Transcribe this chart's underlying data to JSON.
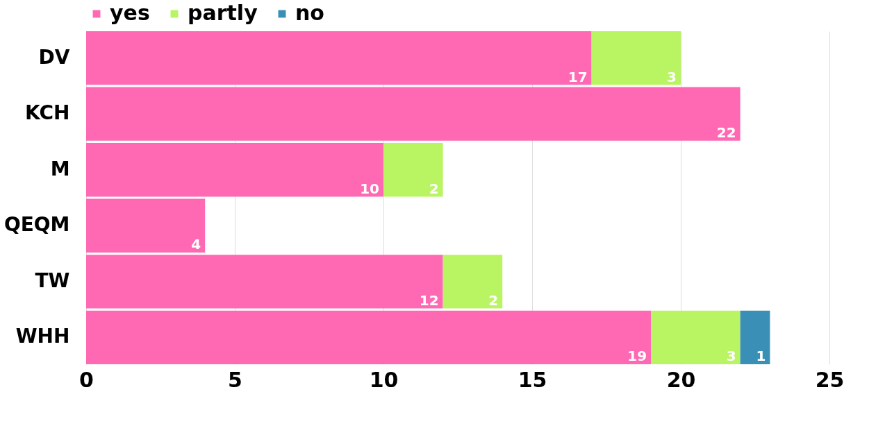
{
  "chart_data": {
    "type": "bar",
    "orientation": "horizontal",
    "stacked": true,
    "categories": [
      "DV",
      "KCH",
      "M",
      "QEQM",
      "TW",
      "WHH"
    ],
    "series": [
      {
        "name": "yes",
        "color": "#ff69b4",
        "values": [
          17,
          22,
          10,
          4,
          12,
          19
        ]
      },
      {
        "name": "partly",
        "color": "#b9f463",
        "values": [
          3,
          null,
          2,
          null,
          2,
          3
        ]
      },
      {
        "name": "no",
        "color": "#3a8fb7",
        "values": [
          null,
          null,
          null,
          null,
          null,
          1
        ]
      }
    ],
    "xlim": [
      0,
      25
    ],
    "xticks": [
      0,
      5,
      10,
      15,
      20,
      25
    ],
    "grid": "x",
    "legend": "top",
    "data_labels": true
  }
}
